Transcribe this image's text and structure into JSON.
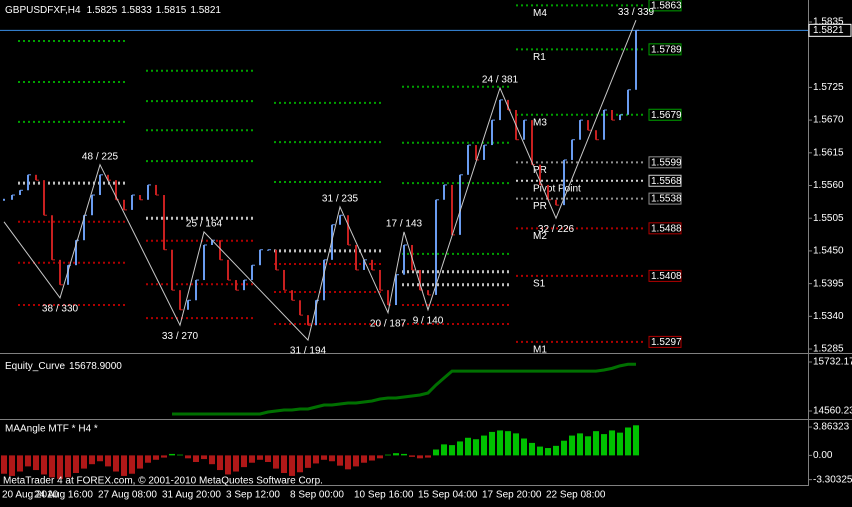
{
  "chart_data": [
    {
      "type": "price",
      "title": "GBPUSDFXF,H4",
      "ohlc": [
        1.5825,
        1.5833,
        1.5815,
        1.5821
      ],
      "price_line_color": "#3a8ee6",
      "colors": {
        "up": "#6a9cf0",
        "down": "#c82020"
      },
      "categories": [
        "20 Aug 2010",
        null,
        null,
        null,
        "24 Aug 16:00",
        null,
        null,
        null,
        null,
        null,
        null,
        null,
        "27 Aug 08:00",
        null,
        null,
        null,
        null,
        null,
        null,
        null,
        "31 Aug 20:00",
        null,
        null,
        null,
        null,
        null,
        null,
        null,
        "3 Sep 12:00",
        null,
        null,
        null,
        null,
        null,
        null,
        null,
        "8 Sep 00:00",
        null,
        null,
        null,
        null,
        null,
        null,
        null,
        "10 Sep 16:00",
        null,
        null,
        null,
        null,
        null,
        null,
        null,
        "15 Sep 04:00",
        null,
        null,
        null,
        null,
        null,
        null,
        null,
        "17 Sep 20:00",
        null,
        null,
        null,
        null,
        null,
        null,
        null,
        "22 Sep 08:00",
        null,
        null,
        null,
        null,
        null,
        null,
        null,
        null,
        null,
        null,
        null
      ],
      "values": [
        1.5536,
        1.5544,
        1.5552,
        1.5578,
        1.5569,
        1.551,
        1.5435,
        1.5393,
        1.5426,
        1.5468,
        1.551,
        1.5544,
        1.5578,
        1.5569,
        1.5536,
        1.5519,
        1.5544,
        1.5536,
        1.5561,
        1.5544,
        1.5452,
        1.5384,
        1.5351,
        1.5367,
        1.5401,
        1.546,
        1.5468,
        1.5435,
        1.5401,
        1.5384,
        1.5401,
        1.5426,
        1.5452,
        1.5452,
        1.5418,
        1.5384,
        1.5367,
        1.5342,
        1.5325,
        1.5367,
        1.5435,
        1.5494,
        1.551,
        1.546,
        1.5418,
        1.5435,
        1.5418,
        1.5384,
        1.5359,
        1.541,
        1.546,
        1.5418,
        1.5384,
        1.5376,
        1.5536,
        1.5561,
        1.5477,
        1.5578,
        1.5628,
        1.5603,
        1.5628,
        1.567,
        1.5704,
        1.5687,
        1.5637,
        1.567,
        1.5595,
        1.5561,
        1.5536,
        1.5527,
        1.5603,
        1.5637,
        1.567,
        1.5653,
        1.5637,
        1.5687,
        1.567,
        1.5679,
        1.5721,
        1.5821
      ],
      "ylim": [
        1.528,
        1.5872
      ],
      "yticks": [
        1.5835,
        1.5725,
        {
          "value": 1.567,
          "label": "1.5670"
        },
        1.5615,
        {
          "value": 1.556,
          "label": "1.5560"
        },
        1.5505,
        {
          "value": 1.545,
          "label": "1.5450"
        },
        1.5395,
        {
          "value": 1.534,
          "label": "1.5340"
        },
        1.5285
      ],
      "level_colors": {
        "resistance": "#00a000",
        "pivot": "#c0c0c0",
        "support": "#b00000"
      },
      "levels": {
        "previous": [
          {
            "resistance": [
              1.5803,
              1.5734,
              1.5667
            ],
            "pivot": [
              1.5564
            ],
            "support": [
              1.5499,
              1.543,
              1.5359
            ]
          },
          {
            "resistance": [
              1.5753,
              1.5702,
              1.5653,
              1.5601
            ],
            "pivot": [
              1.5505
            ],
            "support": [
              1.5467,
              1.5394,
              1.5337
            ]
          },
          {
            "resistance": [
              1.5699,
              1.5633,
              1.5566
            ],
            "pivot": [
              1.545
            ],
            "support": [
              1.5428,
              1.5381,
              1.5327
            ]
          },
          {
            "resistance": [
              1.5726,
              1.5632,
              1.5564,
              1.5445
            ],
            "pivot": [
              1.5415,
              1.5393
            ],
            "support": [
              1.5359,
              1.5327
            ]
          }
        ],
        "current": [
          {
            "label": "M4",
            "value": 1.5863,
            "color": "#00a000"
          },
          {
            "label": "R1",
            "value": 1.5789,
            "color": "#00a000"
          },
          {
            "label": "M3",
            "value": 1.5679,
            "color": "#00a000"
          },
          {
            "label": "PR",
            "value": 1.5599,
            "color": "#909090"
          },
          {
            "label": "Pivot Point",
            "value": 1.5568,
            "color": "#d0d0d0"
          },
          {
            "label": "PR",
            "value": 1.5538,
            "color": "#909090"
          },
          {
            "label": "M2",
            "value": 1.5488,
            "color": "#b00000"
          },
          {
            "label": "S1",
            "value": 1.5408,
            "color": "#b00000"
          },
          {
            "label": "M1",
            "value": 1.5297,
            "color": "#b00000"
          }
        ]
      },
      "zigzag": {
        "color": "#c8c8c8",
        "label_color": "#40c8f0",
        "last_label_color": "#e020e0",
        "x": [
          0,
          7,
          12,
          22,
          25,
          38,
          42,
          48,
          50,
          53,
          62,
          69,
          79
        ],
        "values": [
          1.5499,
          1.5371,
          1.5595,
          1.5325,
          1.5482,
          1.53,
          1.5524,
          1.5346,
          1.5482,
          1.5351,
          1.5724,
          1.5505,
          1.5838
        ],
        "labels": [
          null,
          "38 / 330",
          "48 / 225",
          "33 / 270",
          "25 / 164",
          "31 / 194",
          "31 / 235",
          "20 / 187",
          "17 / 143",
          "9 / 140",
          "24 / 381",
          "32 / 226",
          "33 / 339"
        ]
      }
    },
    {
      "type": "line",
      "title": "Equity_Curve",
      "color": "#007000",
      "values": [
        null,
        null,
        null,
        null,
        null,
        null,
        null,
        null,
        null,
        null,
        null,
        null,
        null,
        null,
        null,
        null,
        null,
        null,
        null,
        null,
        null,
        14488.5,
        14488.5,
        14488.5,
        14488.5,
        14488.5,
        14488.5,
        14488.5,
        14488.5,
        14488.5,
        14488.5,
        14488.5,
        14488.5,
        14536.3,
        14560.2,
        14584.2,
        14584.2,
        14608.1,
        14608.1,
        14655.9,
        14703.8,
        14703.8,
        14727.7,
        14751.6,
        14751.6,
        14775.5,
        14799.4,
        14847.3,
        14871.2,
        14871.2,
        14895.1,
        14919.0,
        14943.0,
        14990.8,
        15182.1,
        15349.6,
        15514.9,
        15514.9,
        15514.9,
        15514.9,
        15514.9,
        15514.9,
        15514.9,
        15514.9,
        15514.9,
        15514.9,
        15514.9,
        15514.9,
        15514.9,
        15514.9,
        15514.9,
        15514.9,
        15514.9,
        15514.9,
        15514.9,
        15540.8,
        15580.0,
        15640.0,
        15678.9,
        15678.9
      ],
      "value_labels": [
        null,
        null,
        null,
        null,
        null,
        null,
        null,
        null,
        null,
        null,
        null,
        null,
        null,
        null,
        null,
        null,
        null,
        null,
        null,
        null,
        null,
        null,
        null,
        null,
        null,
        null,
        null,
        null,
        null,
        null,
        null,
        null,
        null,
        null,
        null,
        null,
        null,
        null,
        null,
        null,
        null,
        null,
        null,
        null,
        null,
        null,
        null,
        null,
        null,
        null,
        null,
        null,
        null,
        null,
        null,
        null,
        null,
        null,
        null,
        null,
        null,
        null,
        null,
        null,
        null,
        null,
        null,
        null,
        null,
        null,
        null,
        null,
        null,
        null,
        null,
        null,
        null,
        null,
        null,
        "15678.9000"
      ],
      "ylim": [
        14392.8,
        15875.7
      ],
      "yticks": [
        15732.17,
        14560.23
      ]
    },
    {
      "type": "bar",
      "title": "MAAngle MTF * H4 *",
      "colors": {
        "positive": "#00c000",
        "negative": "#b01818"
      },
      "values": [
        -2.5,
        -2.8,
        -2.2,
        -1.5,
        -2.0,
        -2.6,
        -3.0,
        -3.2,
        -3.0,
        -2.4,
        -1.8,
        -1.2,
        -0.8,
        -1.5,
        -2.2,
        -2.8,
        -2.5,
        -1.8,
        -1.0,
        -0.6,
        -0.3,
        0.2,
        0.1,
        -0.4,
        -0.9,
        -0.5,
        -1.2,
        -2.0,
        -2.6,
        -2.2,
        -1.6,
        -1.0,
        -0.6,
        -0.9,
        -1.8,
        -2.4,
        -2.8,
        -2.3,
        -1.7,
        -1.1,
        -0.6,
        -0.8,
        -1.4,
        -1.9,
        -1.5,
        -1.0,
        -0.7,
        -0.4,
        0.1,
        0.3,
        0.2,
        -0.2,
        -0.4,
        -0.3,
        0.8,
        1.5,
        1.4,
        1.9,
        2.4,
        2.2,
        2.7,
        3.2,
        3.4,
        3.3,
        3.0,
        2.3,
        1.7,
        1.2,
        1.0,
        1.3,
        2.0,
        2.7,
        3.0,
        2.6,
        3.3,
        2.9,
        3.4,
        3.1,
        3.8,
        4.1
      ],
      "ylim": [
        -3.9,
        4.55
      ],
      "yticks": [
        3.86323,
        {
          "value": 0,
          "label": "0.00"
        },
        -3.30325
      ]
    }
  ],
  "footer": "MetaTrader 4 at FOREX.com, © 2001-2010 MetaQuotes Software Corp."
}
